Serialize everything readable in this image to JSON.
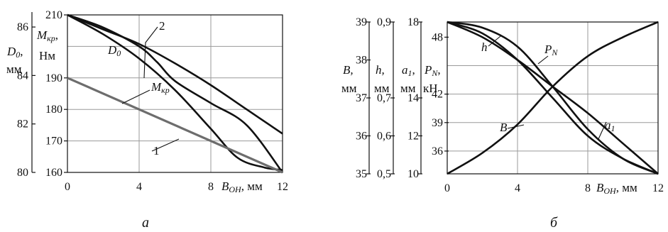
{
  "chart_data": [
    {
      "type": "line",
      "caption": "а",
      "x": [
        0,
        4,
        8,
        12
      ],
      "xlabel": "B",
      "xlabel_sub": "OH",
      "xlabel_unit": ", мм",
      "xlim": [
        0,
        12
      ],
      "y_axes": [
        {
          "id": "D0",
          "label": "D",
          "label_sub": "0",
          "label_suffix": ",",
          "unit": "мм",
          "ticks": [
            "80",
            "82",
            "84",
            "86"
          ],
          "ylim": [
            80,
            86.5
          ]
        },
        {
          "id": "Mkr",
          "label": "M",
          "label_sub": "кр",
          "label_suffix": ",",
          "unit": "Нм",
          "ticks": [
            "160",
            "170",
            "180",
            "190",
            "210"
          ],
          "ylim": [
            160,
            210
          ]
        }
      ],
      "series": [
        {
          "name": "D",
          "name_sub": "0",
          "axis": "D0",
          "x": [
            0,
            2,
            4,
            6,
            8,
            10,
            12
          ],
          "y": [
            86.5,
            85.9,
            85.3,
            84.5,
            83.6,
            82.6,
            81.6
          ]
        },
        {
          "name": "2",
          "axis": "Mkr",
          "x": [
            0,
            2,
            4,
            5,
            6,
            8,
            10,
            12
          ],
          "y": [
            210,
            206,
            200,
            195,
            189,
            182,
            175,
            160
          ]
        },
        {
          "name": "M",
          "name_sub": "кр",
          "axis": "D0",
          "x": [
            0,
            2,
            4,
            6,
            8,
            9.5,
            11,
            12
          ],
          "y": [
            86.5,
            85.7,
            84.7,
            83.4,
            81.8,
            80.6,
            80.2,
            80.1
          ]
        },
        {
          "name": "1",
          "axis": "Mkr",
          "x": [
            0,
            12
          ],
          "y": [
            190,
            160
          ]
        }
      ],
      "grid": true
    },
    {
      "type": "line",
      "caption": "б",
      "x": [
        0,
        4,
        8,
        12
      ],
      "xlabel": "B",
      "xlabel_sub": "OH",
      "xlabel_unit": ", мм",
      "xlim": [
        0,
        12
      ],
      "y_axes": [
        {
          "id": "B",
          "label": "B,",
          "unit": "мм",
          "ticks": [
            "35",
            "36",
            "37",
            "38",
            "39"
          ],
          "ylim": [
            35,
            39
          ]
        },
        {
          "id": "h",
          "label": "h,",
          "unit": "мм",
          "ticks": [
            "0,5",
            "0,6",
            "0,7",
            "0,9"
          ],
          "ylim": [
            0.5,
            0.9
          ]
        },
        {
          "id": "a1",
          "label": "a",
          "label_sub": "1",
          "label_suffix": ",",
          "unit": "мм",
          "ticks": [
            "10",
            "12",
            "14",
            "18"
          ],
          "ylim": [
            10,
            18
          ]
        },
        {
          "id": "PN",
          "label": "P",
          "label_sub": "N",
          "label_suffix": ",",
          "unit": "кН",
          "ticks": [
            "36",
            "39",
            "42",
            "48"
          ],
          "ylim": [
            33.6,
            49.6
          ]
        }
      ],
      "series": [
        {
          "name": "a",
          "name_sub": "1",
          "axis": "a1",
          "x": [
            0,
            2,
            4,
            6,
            8,
            10,
            12
          ],
          "y": [
            10,
            11.1,
            12.6,
            14.6,
            16.2,
            17.2,
            18
          ]
        },
        {
          "name": "B",
          "axis": "B",
          "x": [
            0,
            2,
            4,
            6,
            8,
            10,
            12
          ],
          "y": [
            39,
            38.7,
            38,
            37,
            36,
            35.4,
            35
          ]
        },
        {
          "name": "h",
          "axis": "h",
          "x": [
            0,
            2,
            4,
            6,
            8,
            10,
            12
          ],
          "y": [
            0.9,
            0.86,
            0.8,
            0.73,
            0.66,
            0.58,
            0.5
          ]
        },
        {
          "name": "P",
          "name_sub": "N",
          "axis": "PN",
          "x": [
            0,
            2,
            4,
            6,
            8,
            10,
            12
          ],
          "y": [
            49.6,
            49.0,
            47.0,
            42.8,
            38.3,
            35.2,
            33.6
          ]
        }
      ],
      "grid": true
    }
  ]
}
